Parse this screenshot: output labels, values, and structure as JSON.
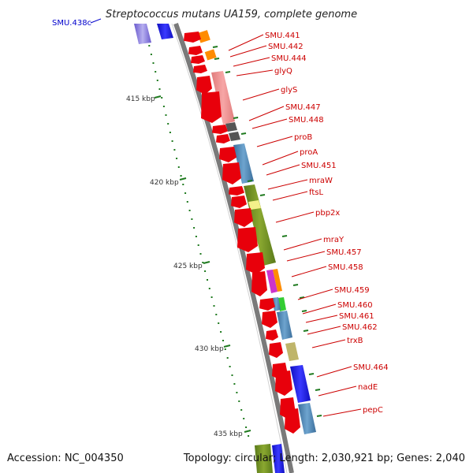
{
  "title": "Streptococcus mutans UA159, complete genome",
  "top_left_label": "SMU.438c",
  "footer": {
    "accession": "Accession: NC_004350",
    "stats": "Topology: circular; Length: 2,030,921 bp; Genes: 2,040"
  },
  "scale_labels": [
    "415 kbp",
    "420 kbp",
    "425 kbp",
    "430 kbp",
    "435 kbp"
  ],
  "gene_labels": [
    "SMU.441",
    "SMU.442",
    "SMU.444",
    "glyQ",
    "glyS",
    "SMU.447",
    "SMU.448",
    "proB",
    "proA",
    "SMU.451",
    "mraW",
    "ftsL",
    "pbp2x",
    "mraY",
    "SMU.457",
    "SMU.458",
    "SMU.459",
    "SMU.460",
    "SMU.461",
    "SMU.462",
    "trxB",
    "SMU.464",
    "nadE",
    "pepC"
  ],
  "colors": {
    "backbone": "#7a7a7a",
    "gene_arrow": "#e8000b",
    "label_red": "#cc0000",
    "scale_tick_green": "#1f7a1f",
    "top_label_blue": "#0000cc"
  }
}
